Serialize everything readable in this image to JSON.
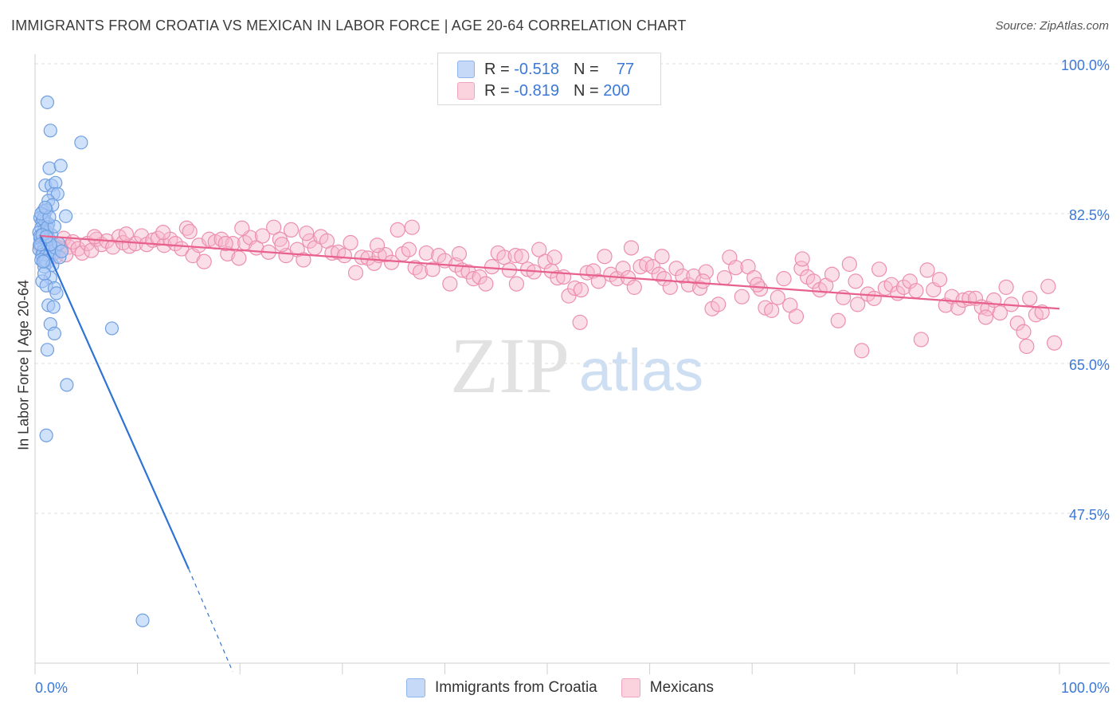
{
  "title": "IMMIGRANTS FROM CROATIA VS MEXICAN IN LABOR FORCE | AGE 20-64 CORRELATION CHART",
  "source": "Source: ZipAtlas.com",
  "watermark": {
    "zip": "ZIP",
    "atlas": "atlas"
  },
  "legend": {
    "r_label": "R =",
    "n_label": "N =",
    "rows": [
      {
        "r": "-0.518",
        "n": "77",
        "color": "#a9c8f5"
      },
      {
        "r": "-0.819",
        "n": "200",
        "color": "#f7b9cc"
      }
    ]
  },
  "bottom_legend": [
    {
      "label": "Immigrants from Croatia",
      "color": "#a9c8f5"
    },
    {
      "label": "Mexicans",
      "color": "#f7b9cc"
    }
  ],
  "colors": {
    "croatia_fill": "#a9c8f5",
    "croatia_stroke": "#6f9fe0",
    "croatia_line": "#2f72d6",
    "mexican_fill": "#f7b9cc",
    "mexican_stroke": "#ec8fae",
    "mexican_line": "#e8608c",
    "tick_text": "#3b78d8"
  },
  "chart_data": {
    "type": "scatter",
    "title": "IMMIGRANTS FROM CROATIA VS MEXICAN IN LABOR FORCE | AGE 20-64 CORRELATION CHART",
    "xlabel": "",
    "ylabel": "In Labor Force | Age 20-64",
    "xlim": [
      0,
      100
    ],
    "ylim": [
      30,
      100
    ],
    "x_tick_labels": [
      "0.0%",
      "100.0%"
    ],
    "y_ticks": [
      47.5,
      65.0,
      82.5,
      100.0
    ],
    "y_tick_labels": [
      "47.5%",
      "65.0%",
      "82.5%",
      "100.0%"
    ],
    "grid": "horizontal dashed",
    "series": [
      {
        "name": "Immigrants from Croatia",
        "points": [
          [
            1.2,
            95.5
          ],
          [
            1.5,
            92.2
          ],
          [
            4.5,
            90.8
          ],
          [
            1.4,
            87.8
          ],
          [
            2.5,
            88.1
          ],
          [
            1.0,
            85.8
          ],
          [
            1.6,
            85.8
          ],
          [
            2.0,
            86.1
          ],
          [
            1.8,
            84.8
          ],
          [
            2.2,
            84.8
          ],
          [
            1.3,
            84.0
          ],
          [
            1.7,
            83.5
          ],
          [
            0.8,
            82.8
          ],
          [
            1.1,
            82.9
          ],
          [
            0.9,
            82.3
          ],
          [
            3.0,
            82.2
          ],
          [
            0.5,
            82.0
          ],
          [
            0.7,
            81.6
          ],
          [
            1.0,
            81.5
          ],
          [
            1.3,
            81.3
          ],
          [
            0.6,
            80.8
          ],
          [
            0.9,
            80.6
          ],
          [
            0.4,
            80.3
          ],
          [
            0.8,
            80.1
          ],
          [
            1.2,
            80.3
          ],
          [
            0.5,
            79.6
          ],
          [
            0.7,
            79.3
          ],
          [
            1.0,
            79.2
          ],
          [
            0.6,
            78.8
          ],
          [
            0.9,
            78.7
          ],
          [
            1.3,
            78.7
          ],
          [
            0.4,
            78.3
          ],
          [
            0.8,
            78.1
          ],
          [
            1.1,
            78.0
          ],
          [
            1.6,
            78.3
          ],
          [
            0.7,
            77.7
          ],
          [
            1.0,
            77.5
          ],
          [
            1.4,
            77.6
          ],
          [
            1.8,
            77.8
          ],
          [
            2.0,
            78.5
          ],
          [
            0.6,
            77.1
          ],
          [
            1.2,
            76.8
          ],
          [
            0.9,
            76.3
          ],
          [
            1.5,
            75.0
          ],
          [
            0.7,
            74.6
          ],
          [
            1.1,
            74.1
          ],
          [
            1.9,
            73.8
          ],
          [
            2.1,
            73.2
          ],
          [
            1.3,
            71.8
          ],
          [
            1.8,
            71.6
          ],
          [
            1.5,
            69.6
          ],
          [
            1.9,
            68.5
          ],
          [
            7.5,
            69.1
          ],
          [
            1.2,
            66.6
          ],
          [
            3.1,
            62.5
          ],
          [
            1.1,
            56.6
          ],
          [
            10.5,
            35.0
          ],
          [
            0.5,
            79.9
          ],
          [
            1.4,
            79.5
          ],
          [
            0.8,
            81.9
          ],
          [
            1.6,
            80.0
          ],
          [
            2.3,
            79.0
          ],
          [
            0.6,
            82.5
          ],
          [
            1.0,
            77.0
          ],
          [
            1.7,
            76.5
          ],
          [
            0.9,
            75.5
          ],
          [
            1.2,
            80.9
          ],
          [
            0.7,
            80.0
          ],
          [
            1.5,
            78.9
          ],
          [
            2.4,
            77.4
          ],
          [
            0.5,
            78.9
          ],
          [
            1.9,
            81.0
          ],
          [
            1.1,
            79.8
          ],
          [
            0.8,
            76.9
          ],
          [
            1.4,
            82.1
          ],
          [
            2.6,
            78.1
          ],
          [
            1.0,
            83.2
          ]
        ]
      },
      {
        "name": "Mexicans",
        "points": [
          [
            0.5,
            78.8
          ],
          [
            0.8,
            77.5
          ],
          [
            1.2,
            79.2
          ],
          [
            1.6,
            78.0
          ],
          [
            2.0,
            77.5
          ],
          [
            2.4,
            78.5
          ],
          [
            2.8,
            79.6
          ],
          [
            3.3,
            78.6
          ],
          [
            3.7,
            79.2
          ],
          [
            4.2,
            78.4
          ],
          [
            4.6,
            77.9
          ],
          [
            5.1,
            79.0
          ],
          [
            5.5,
            78.2
          ],
          [
            6.0,
            79.5
          ],
          [
            6.5,
            78.9
          ],
          [
            7.0,
            79.3
          ],
          [
            7.6,
            78.6
          ],
          [
            8.2,
            79.8
          ],
          [
            8.6,
            79.1
          ],
          [
            9.2,
            78.7
          ],
          [
            9.8,
            79.0
          ],
          [
            10.4,
            79.9
          ],
          [
            10.9,
            78.9
          ],
          [
            11.5,
            79.4
          ],
          [
            12.0,
            79.6
          ],
          [
            12.6,
            78.8
          ],
          [
            13.2,
            79.5
          ],
          [
            13.7,
            79.0
          ],
          [
            14.3,
            78.4
          ],
          [
            14.8,
            80.8
          ],
          [
            15.4,
            77.6
          ],
          [
            16.0,
            78.8
          ],
          [
            16.5,
            76.9
          ],
          [
            17.0,
            79.5
          ],
          [
            17.6,
            79.2
          ],
          [
            18.2,
            79.5
          ],
          [
            18.8,
            77.8
          ],
          [
            19.3,
            79.0
          ],
          [
            19.9,
            77.3
          ],
          [
            20.5,
            79.1
          ],
          [
            21.0,
            79.7
          ],
          [
            21.6,
            78.5
          ],
          [
            22.2,
            79.9
          ],
          [
            22.8,
            78.0
          ],
          [
            23.3,
            80.9
          ],
          [
            23.9,
            79.5
          ],
          [
            24.5,
            77.6
          ],
          [
            25.0,
            80.6
          ],
          [
            25.6,
            78.3
          ],
          [
            26.2,
            77.1
          ],
          [
            26.8,
            79.3
          ],
          [
            27.3,
            78.5
          ],
          [
            27.9,
            79.8
          ],
          [
            28.5,
            79.3
          ],
          [
            29.0,
            77.9
          ],
          [
            29.6,
            78.0
          ],
          [
            30.2,
            77.6
          ],
          [
            30.8,
            79.1
          ],
          [
            31.3,
            75.6
          ],
          [
            31.9,
            77.4
          ],
          [
            32.5,
            77.3
          ],
          [
            33.1,
            76.7
          ],
          [
            33.6,
            77.6
          ],
          [
            34.2,
            77.7
          ],
          [
            34.8,
            76.8
          ],
          [
            35.4,
            80.6
          ],
          [
            35.9,
            77.8
          ],
          [
            36.5,
            78.3
          ],
          [
            37.1,
            76.2
          ],
          [
            37.6,
            75.7
          ],
          [
            38.2,
            77.9
          ],
          [
            38.8,
            76.0
          ],
          [
            39.4,
            77.6
          ],
          [
            40.0,
            77.0
          ],
          [
            40.5,
            74.3
          ],
          [
            41.1,
            76.5
          ],
          [
            41.7,
            75.9
          ],
          [
            42.3,
            75.7
          ],
          [
            42.8,
            74.9
          ],
          [
            43.4,
            75.1
          ],
          [
            44.0,
            74.3
          ],
          [
            44.6,
            76.3
          ],
          [
            45.2,
            77.9
          ],
          [
            45.8,
            77.4
          ],
          [
            46.3,
            75.9
          ],
          [
            46.9,
            77.6
          ],
          [
            47.5,
            77.5
          ],
          [
            48.1,
            76.0
          ],
          [
            48.7,
            75.7
          ],
          [
            49.2,
            78.3
          ],
          [
            49.8,
            76.9
          ],
          [
            50.4,
            75.8
          ],
          [
            51.0,
            75.0
          ],
          [
            51.6,
            75.1
          ],
          [
            52.1,
            72.9
          ],
          [
            52.7,
            73.8
          ],
          [
            53.3,
            73.6
          ],
          [
            53.9,
            75.6
          ],
          [
            54.5,
            75.8
          ],
          [
            55.0,
            74.6
          ],
          [
            55.6,
            77.5
          ],
          [
            56.2,
            75.4
          ],
          [
            56.8,
            74.9
          ],
          [
            57.4,
            76.1
          ],
          [
            57.9,
            75.0
          ],
          [
            58.5,
            73.9
          ],
          [
            59.1,
            76.3
          ],
          [
            59.7,
            76.6
          ],
          [
            60.3,
            76.3
          ],
          [
            60.9,
            75.4
          ],
          [
            61.4,
            74.9
          ],
          [
            62.0,
            73.9
          ],
          [
            62.6,
            76.1
          ],
          [
            63.2,
            75.2
          ],
          [
            63.8,
            74.2
          ],
          [
            64.3,
            75.2
          ],
          [
            64.9,
            73.8
          ],
          [
            65.5,
            75.7
          ],
          [
            66.1,
            71.4
          ],
          [
            66.7,
            71.9
          ],
          [
            67.3,
            75.0
          ],
          [
            67.8,
            77.4
          ],
          [
            68.4,
            76.2
          ],
          [
            69.0,
            72.8
          ],
          [
            69.6,
            76.3
          ],
          [
            70.2,
            75.0
          ],
          [
            70.8,
            73.7
          ],
          [
            71.3,
            71.5
          ],
          [
            71.9,
            71.2
          ],
          [
            72.5,
            72.7
          ],
          [
            73.1,
            74.9
          ],
          [
            73.7,
            71.8
          ],
          [
            74.3,
            70.5
          ],
          [
            74.8,
            76.1
          ],
          [
            75.4,
            75.1
          ],
          [
            76.0,
            74.6
          ],
          [
            76.6,
            73.6
          ],
          [
            77.2,
            74.1
          ],
          [
            77.8,
            75.4
          ],
          [
            78.4,
            70.0
          ],
          [
            78.9,
            72.7
          ],
          [
            79.5,
            76.6
          ],
          [
            80.1,
            74.6
          ],
          [
            80.7,
            66.5
          ],
          [
            81.3,
            73.1
          ],
          [
            81.9,
            72.6
          ],
          [
            82.4,
            76.0
          ],
          [
            83.0,
            73.8
          ],
          [
            83.6,
            74.2
          ],
          [
            84.2,
            73.2
          ],
          [
            84.8,
            73.9
          ],
          [
            85.4,
            74.6
          ],
          [
            86.0,
            73.5
          ],
          [
            86.5,
            67.8
          ],
          [
            87.1,
            75.9
          ],
          [
            87.7,
            73.6
          ],
          [
            88.3,
            74.8
          ],
          [
            88.9,
            71.8
          ],
          [
            89.5,
            72.8
          ],
          [
            90.1,
            71.5
          ],
          [
            90.6,
            72.4
          ],
          [
            91.2,
            72.6
          ],
          [
            91.8,
            72.6
          ],
          [
            92.4,
            71.6
          ],
          [
            93.0,
            71.4
          ],
          [
            93.6,
            72.4
          ],
          [
            94.2,
            70.9
          ],
          [
            94.8,
            73.9
          ],
          [
            95.3,
            71.9
          ],
          [
            95.9,
            69.7
          ],
          [
            96.5,
            68.7
          ],
          [
            97.1,
            72.6
          ],
          [
            97.7,
            70.7
          ],
          [
            98.3,
            71.0
          ],
          [
            98.9,
            74.0
          ],
          [
            99.5,
            67.4
          ],
          [
            12.5,
            80.3
          ],
          [
            18.6,
            79.0
          ],
          [
            24.1,
            78.9
          ],
          [
            36.8,
            80.9
          ],
          [
            47.0,
            74.3
          ],
          [
            53.2,
            69.8
          ],
          [
            61.2,
            77.5
          ],
          [
            74.9,
            77.2
          ],
          [
            80.3,
            71.9
          ],
          [
            92.8,
            70.4
          ],
          [
            96.8,
            67.0
          ],
          [
            1.9,
            78.8
          ],
          [
            3.0,
            77.7
          ],
          [
            5.8,
            79.8
          ],
          [
            8.9,
            80.1
          ],
          [
            15.1,
            80.4
          ],
          [
            20.2,
            80.8
          ],
          [
            26.5,
            80.2
          ],
          [
            33.4,
            78.8
          ],
          [
            41.4,
            77.8
          ],
          [
            50.7,
            77.4
          ],
          [
            58.2,
            78.5
          ],
          [
            65.2,
            74.6
          ],
          [
            70.5,
            74.2
          ]
        ]
      }
    ],
    "trend_lines": [
      {
        "series": "Immigrants from Croatia",
        "solid_from": [
          0.5,
          80.0
        ],
        "solid_to": [
          15.0,
          41.0
        ],
        "dashed_to": [
          19.3,
          29.0
        ]
      },
      {
        "series": "Mexicans",
        "from": [
          0.5,
          79.9
        ],
        "to": [
          100.0,
          71.4
        ]
      }
    ]
  }
}
